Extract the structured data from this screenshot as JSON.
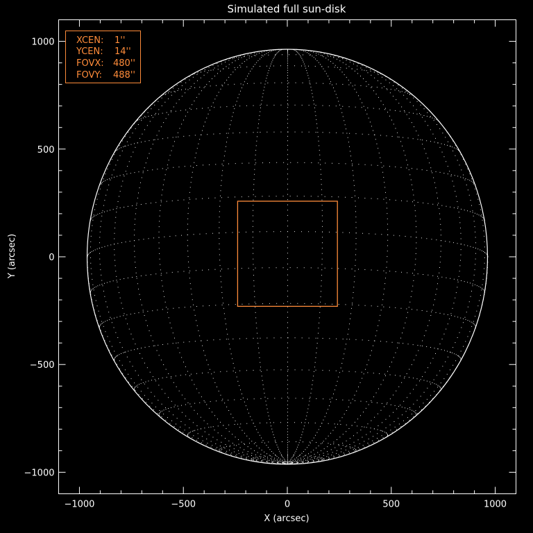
{
  "chart_data": {
    "type": "scatter",
    "title": "Simulated full sun-disk",
    "xlabel": "X (arcsec)",
    "ylabel": "Y (arcsec)",
    "xlim": [
      -1100,
      1100
    ],
    "ylim": [
      -1100,
      1100
    ],
    "x_ticks": [
      -1000,
      -500,
      0,
      500,
      1000
    ],
    "y_ticks": [
      -1000,
      -500,
      0,
      500,
      1000
    ],
    "x_tick_labels": [
      "−1000",
      "−500",
      "0",
      "500",
      "1000"
    ],
    "y_tick_labels": [
      "−1000",
      "−500",
      "0",
      "500",
      "1000"
    ],
    "minor_tick_step": 100,
    "disk": {
      "radius_arcsec": 963,
      "b0_deg": -7,
      "grid_spacing_deg": 10,
      "color": "#ffffff"
    },
    "field_of_view": {
      "xcen": 1,
      "ycen": 14,
      "fovx": 480,
      "fovy": 488,
      "color": "#ff8c3a"
    },
    "legend": {
      "placement": "top-left",
      "color": "#ff8c3a",
      "rows": [
        {
          "label": "XCEN:",
          "value": "1''"
        },
        {
          "label": "YCEN:",
          "value": "14''"
        },
        {
          "label": "FOVX:",
          "value": "480''"
        },
        {
          "label": "FOVY:",
          "value": "488''"
        }
      ]
    }
  }
}
